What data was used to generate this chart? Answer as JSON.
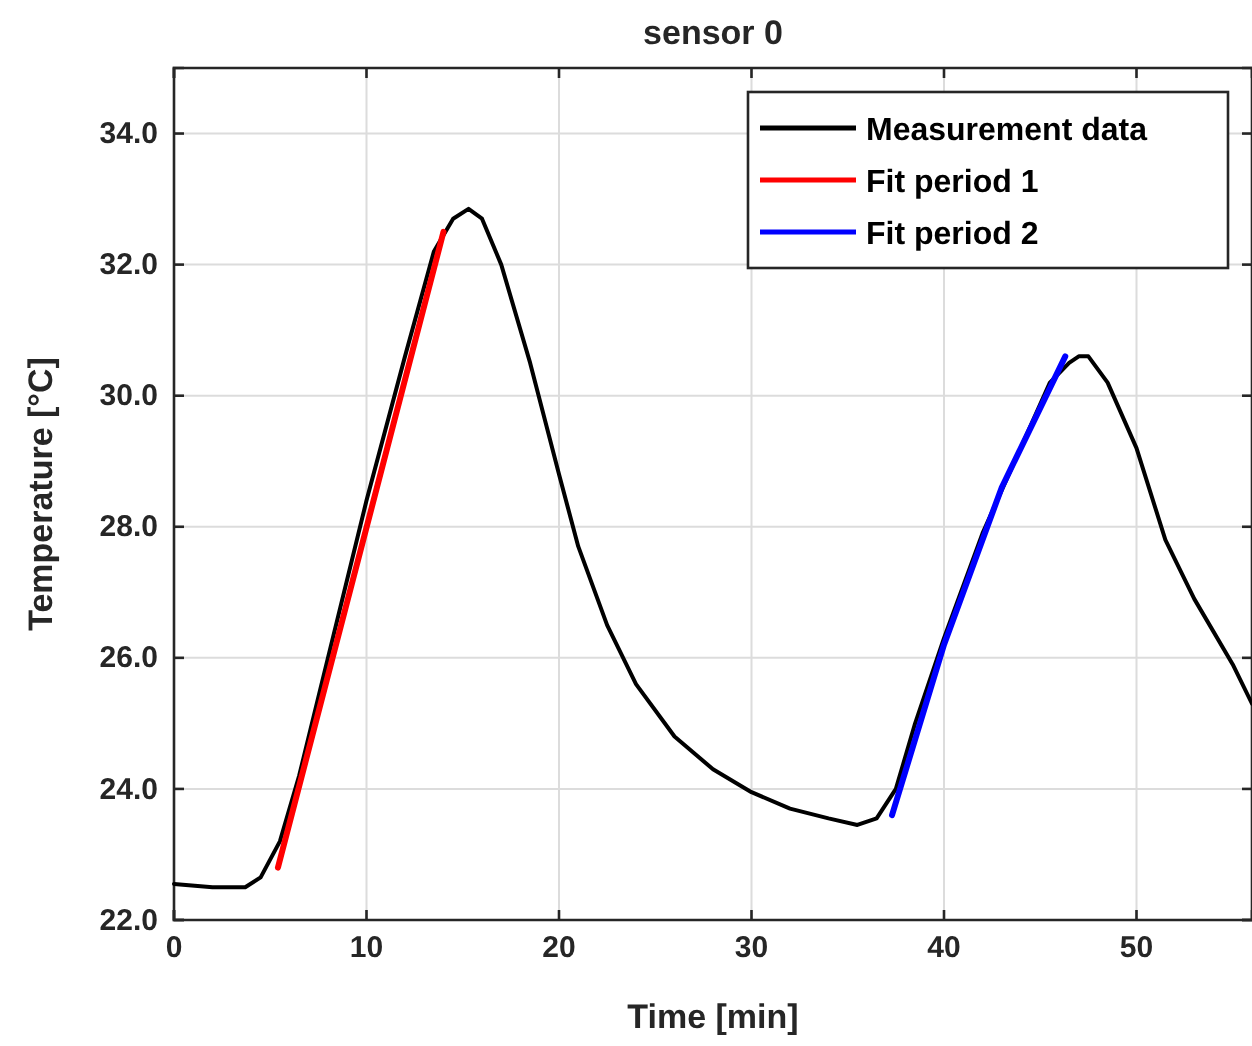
{
  "chart_data": {
    "type": "line",
    "title": "sensor 0",
    "xlabel": "Time [min]",
    "ylabel": "Temperature [°C]",
    "xlim": [
      0,
      56
    ],
    "ylim": [
      22,
      35
    ],
    "xticks": [
      0,
      10,
      20,
      30,
      40,
      50
    ],
    "yticks": [
      {
        "value": 22,
        "label": "22.0"
      },
      {
        "value": 24,
        "label": "24.0"
      },
      {
        "value": 26,
        "label": "26.0"
      },
      {
        "value": 28,
        "label": "28.0"
      },
      {
        "value": 30,
        "label": "30.0"
      },
      {
        "value": 32,
        "label": "32.0"
      },
      {
        "value": 34,
        "label": "34.0"
      }
    ],
    "grid": true,
    "legend": "top right",
    "line_style": "solid",
    "marker": "none",
    "series": [
      {
        "name": "Measurement data",
        "color": "#000000",
        "x": [
          0,
          2,
          3.7,
          4.5,
          5.5,
          6.5,
          8,
          10,
          12,
          13.5,
          14.5,
          15.3,
          16,
          17,
          18.5,
          20,
          21,
          22.5,
          24,
          26,
          28,
          30,
          32,
          34,
          35.5,
          36.5,
          37.5,
          38.5,
          40,
          42,
          45.5,
          46.5,
          47,
          47.5,
          48.5,
          50,
          51.5,
          53,
          55,
          56
        ],
        "values": [
          22.55,
          22.5,
          22.5,
          22.65,
          23.2,
          24.2,
          26,
          28.4,
          30.6,
          32.2,
          32.7,
          32.85,
          32.7,
          32,
          30.5,
          28.8,
          27.7,
          26.5,
          25.6,
          24.8,
          24.3,
          23.95,
          23.7,
          23.55,
          23.45,
          23.55,
          24,
          25,
          26.3,
          27.9,
          30.2,
          30.5,
          30.6,
          30.6,
          30.2,
          29.2,
          27.8,
          26.9,
          25.9,
          25.3
        ]
      },
      {
        "name": "Fit period 1",
        "color": "#ff0000",
        "x": [
          5.4,
          14
        ],
        "values": [
          22.8,
          32.5
        ]
      },
      {
        "name": "Fit period 2",
        "color": "#0000ff",
        "x": [
          37.3,
          40,
          43,
          46.3
        ],
        "values": [
          23.6,
          26.2,
          28.6,
          30.6
        ]
      }
    ]
  }
}
